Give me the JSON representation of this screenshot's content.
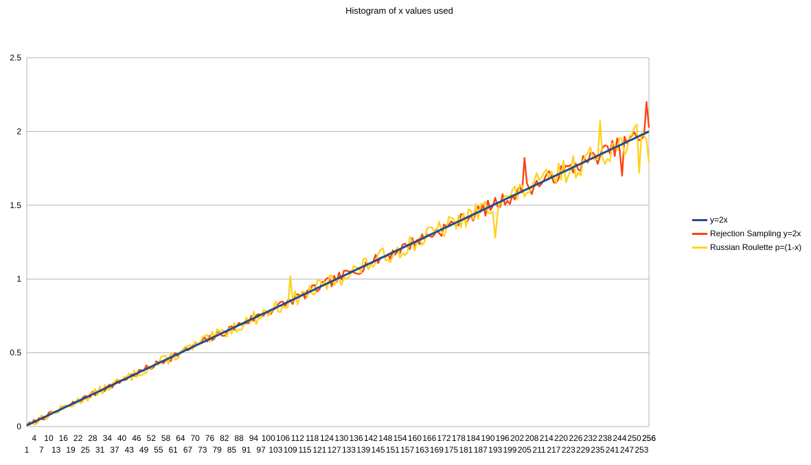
{
  "chart_data": {
    "type": "line",
    "title": "Histogram of x values used",
    "xlabel": "",
    "ylabel": "",
    "ylim": [
      0,
      2.5
    ],
    "yticks": [
      "0",
      "0.5",
      "1",
      "1.5",
      "2",
      "2.5"
    ],
    "x_range": [
      1,
      256
    ],
    "x_tick_step": 3,
    "x_tick_rows": "alternating (odd rows: 1,7,13...; even rows: 4,10,16...)",
    "grid": "horizontal major gridlines",
    "legend_position": "right",
    "series": [
      {
        "name": "y=2x",
        "color": "#1f4e8c",
        "formula": "2*x/256 (x = 1..256)",
        "values": [
          0.008,
          0.016,
          0.023,
          0.031,
          0.039,
          0.047,
          0.055,
          0.063,
          0.07,
          0.078,
          0.086,
          0.094,
          0.102,
          0.109,
          0.117,
          0.125,
          0.133,
          0.141,
          0.148,
          0.156,
          0.164,
          0.172,
          0.18,
          0.188,
          0.195,
          0.203,
          0.211,
          0.219,
          0.227,
          0.234,
          0.242,
          0.25,
          0.258,
          0.266,
          0.273,
          0.281,
          0.289,
          0.297,
          0.305,
          0.313,
          0.32,
          0.328,
          0.336,
          0.344,
          0.352,
          0.359,
          0.367,
          0.375,
          0.383,
          0.391,
          0.398,
          0.406,
          0.414,
          0.422,
          0.43,
          0.438,
          0.445,
          0.453,
          0.461,
          0.469,
          0.477,
          0.484,
          0.492,
          0.5,
          0.508,
          0.516,
          0.523,
          0.531,
          0.539,
          0.547,
          0.555,
          0.563,
          0.57,
          0.578,
          0.586,
          0.594,
          0.602,
          0.609,
          0.617,
          0.625,
          0.633,
          0.641,
          0.648,
          0.656,
          0.664,
          0.672,
          0.68,
          0.688,
          0.695,
          0.703,
          0.711,
          0.719,
          0.727,
          0.734,
          0.742,
          0.75,
          0.758,
          0.766,
          0.773,
          0.781,
          0.789,
          0.797,
          0.805,
          0.813,
          0.82,
          0.828,
          0.836,
          0.844,
          0.852,
          0.859,
          0.867,
          0.875,
          0.883,
          0.891,
          0.898,
          0.906,
          0.914,
          0.922,
          0.93,
          0.938,
          0.945,
          0.953,
          0.961,
          0.969,
          0.977,
          0.984,
          0.992,
          1.0,
          1.008,
          1.016,
          1.023,
          1.031,
          1.039,
          1.047,
          1.055,
          1.063,
          1.07,
          1.078,
          1.086,
          1.094,
          1.102,
          1.109,
          1.117,
          1.125,
          1.133,
          1.141,
          1.148,
          1.156,
          1.164,
          1.172,
          1.18,
          1.188,
          1.195,
          1.203,
          1.211,
          1.219,
          1.227,
          1.234,
          1.242,
          1.25,
          1.258,
          1.266,
          1.273,
          1.281,
          1.289,
          1.297,
          1.305,
          1.313,
          1.32,
          1.328,
          1.336,
          1.344,
          1.352,
          1.359,
          1.367,
          1.375,
          1.383,
          1.391,
          1.398,
          1.406,
          1.414,
          1.422,
          1.43,
          1.438,
          1.445,
          1.453,
          1.461,
          1.469,
          1.477,
          1.484,
          1.492,
          1.5,
          1.508,
          1.516,
          1.523,
          1.531,
          1.539,
          1.547,
          1.555,
          1.563,
          1.57,
          1.578,
          1.586,
          1.594,
          1.602,
          1.609,
          1.617,
          1.625,
          1.633,
          1.641,
          1.648,
          1.656,
          1.664,
          1.672,
          1.68,
          1.688,
          1.695,
          1.703,
          1.711,
          1.719,
          1.727,
          1.734,
          1.742,
          1.75,
          1.758,
          1.766,
          1.773,
          1.781,
          1.789,
          1.797,
          1.805,
          1.813,
          1.82,
          1.828,
          1.836,
          1.844,
          1.852,
          1.859,
          1.867,
          1.875,
          1.883,
          1.891,
          1.898,
          1.906,
          1.914,
          1.922,
          1.93,
          1.938,
          1.945,
          1.953,
          1.961,
          1.969,
          1.977,
          1.984,
          1.992,
          2.0
        ]
      },
      {
        "name": "Rejection Sampling y=2x",
        "color": "#ff420e",
        "noise_amplitude": 0.06,
        "noise_seed": 7,
        "peaks": {
          "205": 1.82,
          "255": 2.2,
          "245": 1.7
        }
      },
      {
        "name": "Russian Roulette p=(1-x)",
        "color": "#ffd320",
        "noise_amplitude": 0.09,
        "noise_seed": 13,
        "peaks": {
          "109": 1.02,
          "193": 1.28,
          "236": 2.07,
          "252": 1.72,
          "256": 1.79
        }
      }
    ]
  }
}
